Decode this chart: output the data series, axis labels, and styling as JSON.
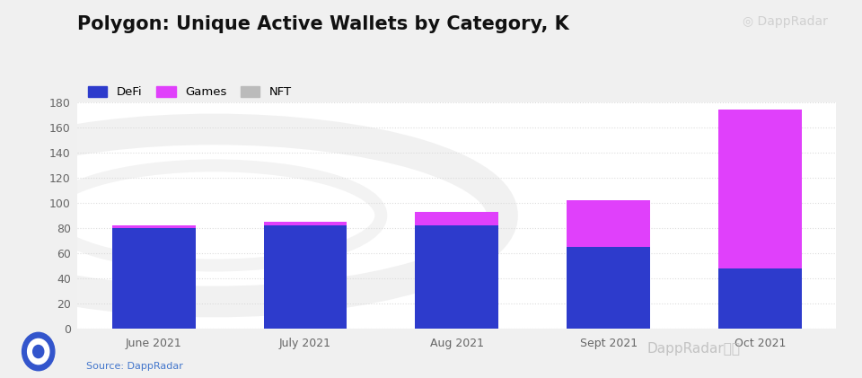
{
  "title": "Polygon: Unique Active Wallets by Category, K",
  "categories": [
    "June 2021",
    "July 2021",
    "Aug 2021",
    "Sept 2021",
    "Oct 2021"
  ],
  "defi": [
    80,
    82,
    82,
    65,
    48
  ],
  "games": [
    2,
    3,
    11,
    37,
    126
  ],
  "nft": [
    0,
    0,
    0,
    0,
    0
  ],
  "defi_color": "#2d3bcc",
  "games_color": "#e040fb",
  "nft_color": "#bbbbbb",
  "bg_color": "#f0f0f0",
  "plot_bg_color": "#ffffff",
  "ylim": [
    0,
    180
  ],
  "yticks": [
    0,
    20,
    40,
    60,
    80,
    100,
    120,
    140,
    160,
    180
  ],
  "source_text": "Source: DappRadar",
  "legend_labels": [
    "DeFi",
    "Games",
    "NFT"
  ],
  "title_fontsize": 15,
  "tick_fontsize": 9,
  "grid_color": "#dddddd",
  "bar_width": 0.55
}
